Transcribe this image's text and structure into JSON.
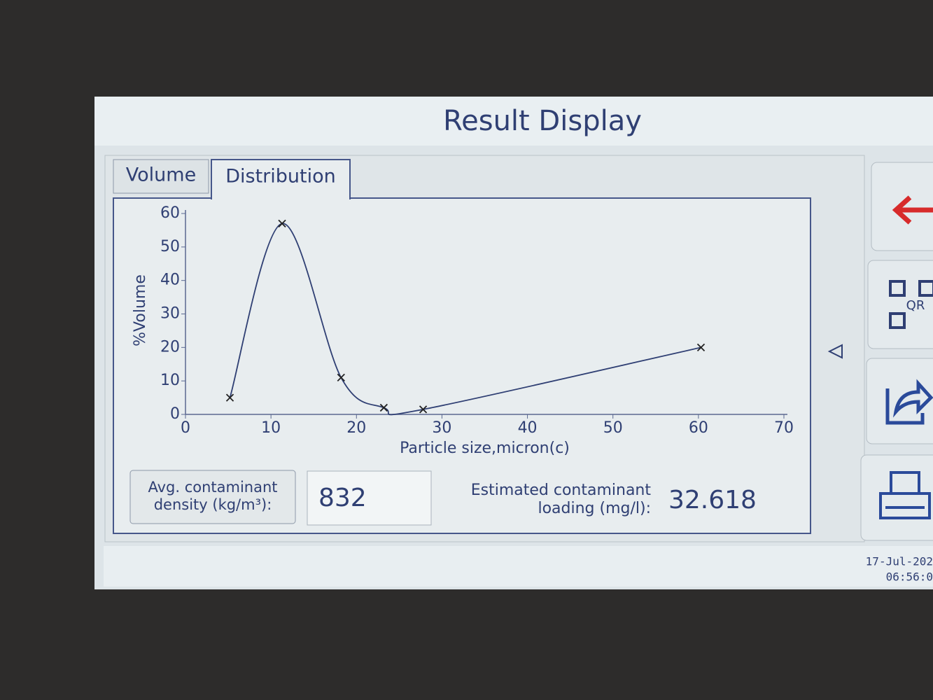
{
  "header": {
    "title": "Result Display"
  },
  "tabs": [
    "Volume",
    "Distribution"
  ],
  "chart_data": {
    "type": "line",
    "smooth": true,
    "marker": "x",
    "color": "#2f3f73",
    "xlabel": "Particle size,micron(c)",
    "ylabel": "%Volume",
    "x": [
      5.2,
      11.3,
      18.2,
      23.2,
      27.8,
      60.3
    ],
    "values": [
      5,
      57,
      11,
      2,
      1.5,
      20
    ],
    "xlim": [
      0,
      70
    ],
    "ylim": [
      0,
      60
    ],
    "xticks": [
      0,
      10,
      20,
      30,
      40,
      50,
      60,
      70
    ],
    "yticks": [
      0,
      10,
      20,
      30,
      40,
      50,
      60
    ]
  },
  "density": {
    "label": [
      "Avg. contaminant",
      "density (kg/m³):"
    ],
    "value": 832
  },
  "loading": {
    "label": [
      "Estimated contaminant",
      "loading (mg/l):"
    ],
    "value": 32.618
  },
  "buttons": {
    "qr": "QR"
  },
  "timestamp": [
    "17-Jul-202",
    "06:56:0"
  ]
}
